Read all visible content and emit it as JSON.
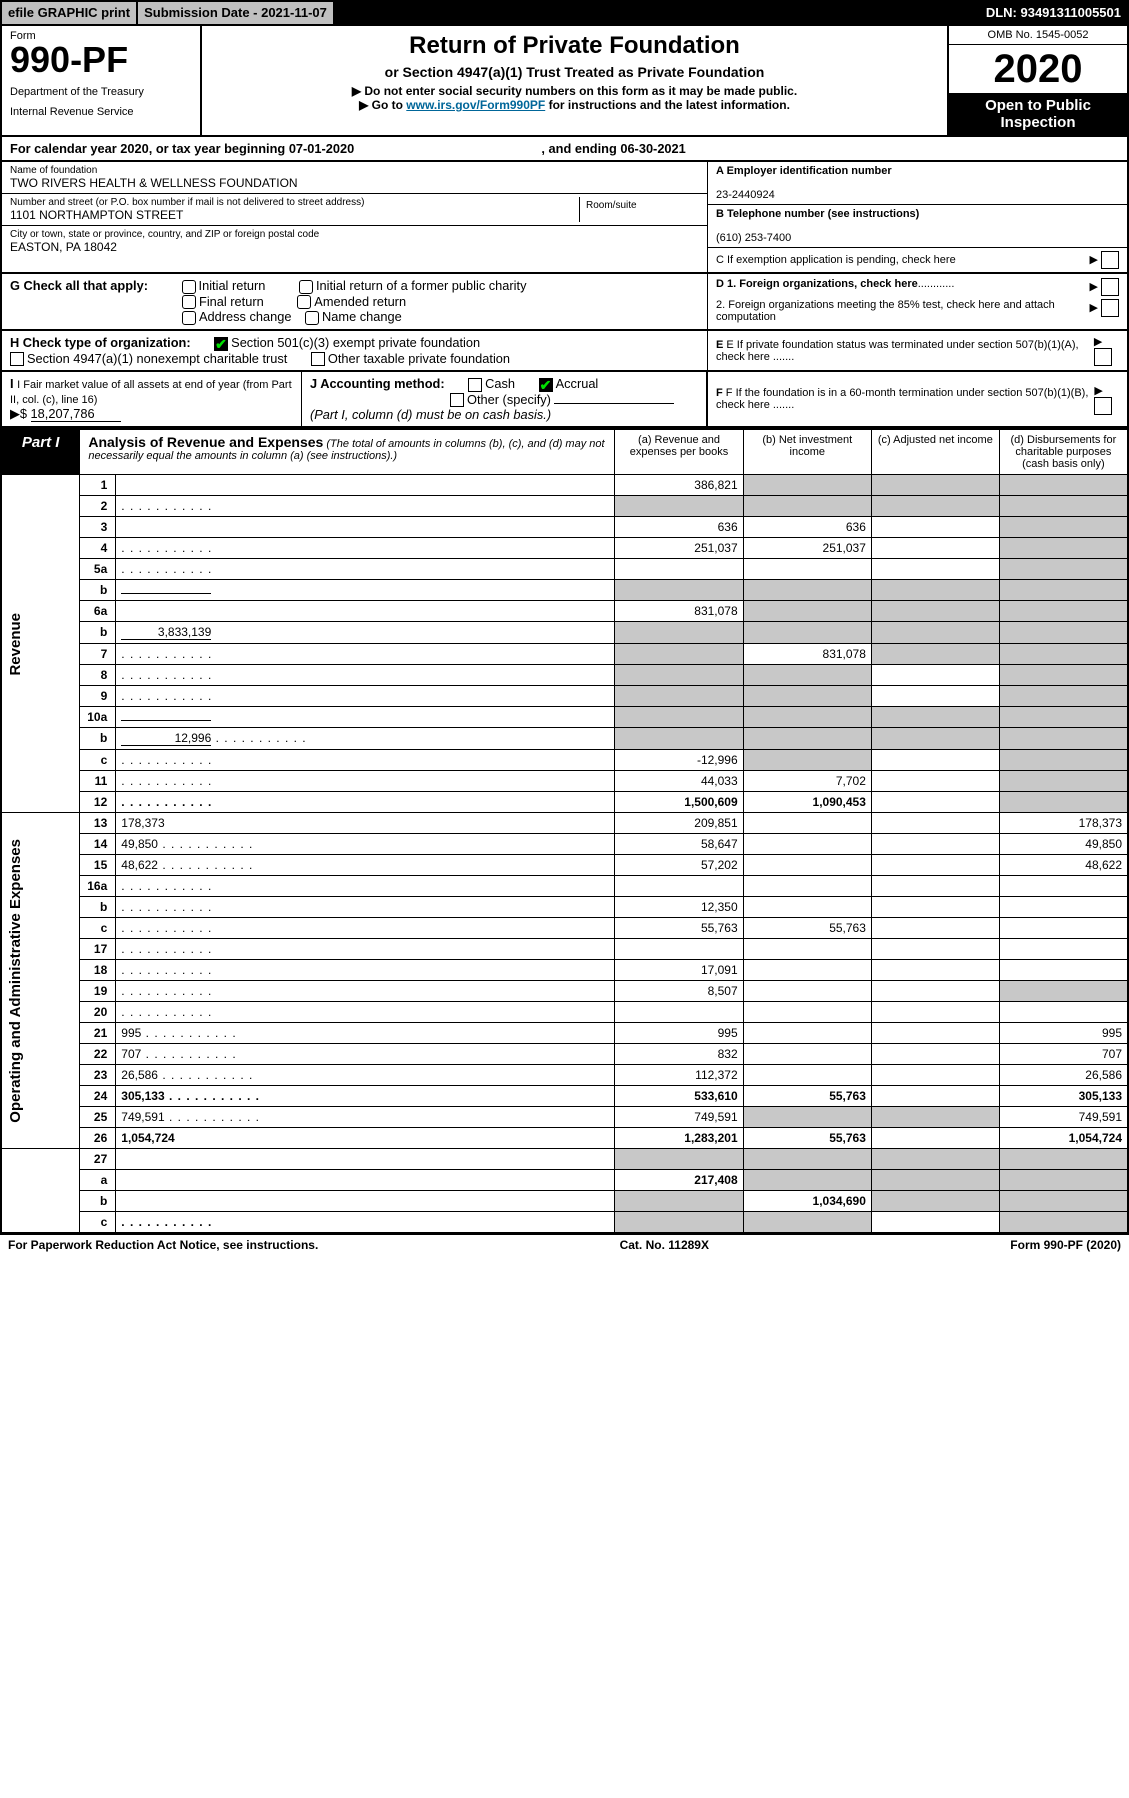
{
  "topbar": {
    "efile": "efile GRAPHIC print",
    "subdate": "Submission Date - 2021-11-07",
    "dln": "DLN: 93491311005501"
  },
  "header": {
    "form_label": "Form",
    "form_num": "990-PF",
    "dept1": "Department of the Treasury",
    "dept2": "Internal Revenue Service",
    "title": "Return of Private Foundation",
    "subtitle": "or Section 4947(a)(1) Trust Treated as Private Foundation",
    "instr1": "▶ Do not enter social security numbers on this form as it may be made public.",
    "instr2_pre": "▶ Go to ",
    "instr2_link": "www.irs.gov/Form990PF",
    "instr2_post": " for instructions and the latest information.",
    "omb": "OMB No. 1545-0052",
    "year": "2020",
    "open": "Open to Public Inspection"
  },
  "calrow": {
    "pre": "For calendar year 2020, or tax year beginning ",
    "begin": "07-01-2020",
    "mid": " , and ending ",
    "end": "06-30-2021"
  },
  "entity": {
    "name_label": "Name of foundation",
    "name": "TWO RIVERS HEALTH & WELLNESS FOUNDATION",
    "addr_label": "Number and street (or P.O. box number if mail is not delivered to street address)",
    "addr": "1101 NORTHAMPTON STREET",
    "room_label": "Room/suite",
    "city_label": "City or town, state or province, country, and ZIP or foreign postal code",
    "city": "EASTON, PA  18042",
    "a_label": "A Employer identification number",
    "a_val": "23-2440924",
    "b_label": "B Telephone number (see instructions)",
    "b_val": "(610) 253-7400",
    "c_label": "C If exemption application is pending, check here"
  },
  "g": {
    "label": "G Check all that apply:",
    "opts": [
      "Initial return",
      "Initial return of a former public charity",
      "Final return",
      "Amended return",
      "Address change",
      "Name change"
    ]
  },
  "d": {
    "d1": "D 1. Foreign organizations, check here",
    "d2": "2. Foreign organizations meeting the 85% test, check here and attach computation"
  },
  "h": {
    "label": "H Check type of organization:",
    "opt1": "Section 501(c)(3) exempt private foundation",
    "opt2": "Section 4947(a)(1) nonexempt charitable trust",
    "opt3": "Other taxable private foundation"
  },
  "e": {
    "label": "E  If private foundation status was terminated under section 507(b)(1)(A), check here"
  },
  "i": {
    "label": "I Fair market value of all assets at end of year (from Part II, col. (c), line 16)",
    "arrow": "▶$",
    "val": "18,207,786"
  },
  "j": {
    "label": "J Accounting method:",
    "cash": "Cash",
    "accrual": "Accrual",
    "other": "Other (specify)",
    "note": "(Part I, column (d) must be on cash basis.)"
  },
  "f": {
    "label": "F  If the foundation is in a 60-month termination under section 507(b)(1)(B), check here"
  },
  "part1": {
    "label": "Part I",
    "title": "Analysis of Revenue and Expenses",
    "note": "(The total of amounts in columns (b), (c), and (d) may not necessarily equal the amounts in column (a) (see instructions).)",
    "col_a": "(a) Revenue and expenses per books",
    "col_b": "(b) Net investment income",
    "col_c": "(c) Adjusted net income",
    "col_d": "(d) Disbursements for charitable purposes (cash basis only)"
  },
  "sections": {
    "revenue": "Revenue",
    "expenses": "Operating and Administrative Expenses"
  },
  "rows": [
    {
      "n": "1",
      "d": "",
      "a": "386,821",
      "b": "",
      "c": "",
      "grey": [
        "b",
        "c",
        "d"
      ]
    },
    {
      "n": "2",
      "d": "",
      "a": "",
      "b": "",
      "c": "",
      "grey": [
        "a",
        "b",
        "c",
        "d"
      ],
      "dots": true
    },
    {
      "n": "3",
      "d": "",
      "a": "636",
      "b": "636",
      "c": "",
      "grey": [
        "d"
      ]
    },
    {
      "n": "4",
      "d": "",
      "a": "251,037",
      "b": "251,037",
      "c": "",
      "grey": [
        "d"
      ],
      "dots": true
    },
    {
      "n": "5a",
      "d": "",
      "a": "",
      "b": "",
      "c": "",
      "grey": [
        "d"
      ],
      "dots": true
    },
    {
      "n": "b",
      "d": "",
      "a": "",
      "b": "",
      "c": "",
      "grey": [
        "a",
        "b",
        "c",
        "d"
      ],
      "inline": true
    },
    {
      "n": "6a",
      "d": "",
      "a": "831,078",
      "b": "",
      "c": "",
      "grey": [
        "b",
        "c",
        "d"
      ]
    },
    {
      "n": "b",
      "d": "",
      "a": "",
      "b": "",
      "c": "",
      "grey": [
        "a",
        "b",
        "c",
        "d"
      ],
      "inline": true,
      "inlineval": "3,833,139"
    },
    {
      "n": "7",
      "d": "",
      "a": "",
      "b": "831,078",
      "c": "",
      "grey": [
        "a",
        "c",
        "d"
      ],
      "dots": true
    },
    {
      "n": "8",
      "d": "",
      "a": "",
      "b": "",
      "c": "",
      "grey": [
        "a",
        "b",
        "d"
      ],
      "dots": true
    },
    {
      "n": "9",
      "d": "",
      "a": "",
      "b": "",
      "c": "",
      "grey": [
        "a",
        "b",
        "d"
      ],
      "dots": true
    },
    {
      "n": "10a",
      "d": "",
      "a": "",
      "b": "",
      "c": "",
      "grey": [
        "a",
        "b",
        "c",
        "d"
      ],
      "inline": true
    },
    {
      "n": "b",
      "d": "",
      "a": "",
      "b": "",
      "c": "",
      "grey": [
        "a",
        "b",
        "c",
        "d"
      ],
      "inline": true,
      "inlineval": "12,996",
      "dots": true
    },
    {
      "n": "c",
      "d": "",
      "a": "-12,996",
      "b": "",
      "c": "",
      "grey": [
        "b",
        "d"
      ],
      "dots": true
    },
    {
      "n": "11",
      "d": "",
      "a": "44,033",
      "b": "7,702",
      "c": "",
      "grey": [
        "d"
      ],
      "dots": true
    },
    {
      "n": "12",
      "d": "",
      "a": "1,500,609",
      "b": "1,090,453",
      "c": "",
      "grey": [
        "d"
      ],
      "bold": true,
      "dots": true
    }
  ],
  "exprows": [
    {
      "n": "13",
      "d": "178,373",
      "a": "209,851",
      "b": "",
      "c": ""
    },
    {
      "n": "14",
      "d": "49,850",
      "a": "58,647",
      "b": "",
      "c": "",
      "dots": true
    },
    {
      "n": "15",
      "d": "48,622",
      "a": "57,202",
      "b": "",
      "c": "",
      "dots": true
    },
    {
      "n": "16a",
      "d": "",
      "a": "",
      "b": "",
      "c": "",
      "dots": true
    },
    {
      "n": "b",
      "d": "",
      "a": "12,350",
      "b": "",
      "c": "",
      "dots": true
    },
    {
      "n": "c",
      "d": "",
      "a": "55,763",
      "b": "55,763",
      "c": "",
      "dots": true
    },
    {
      "n": "17",
      "d": "",
      "a": "",
      "b": "",
      "c": "",
      "dots": true
    },
    {
      "n": "18",
      "d": "",
      "a": "17,091",
      "b": "",
      "c": "",
      "dots": true
    },
    {
      "n": "19",
      "d": "",
      "a": "8,507",
      "b": "",
      "c": "",
      "grey": [
        "d"
      ],
      "dots": true
    },
    {
      "n": "20",
      "d": "",
      "a": "",
      "b": "",
      "c": "",
      "dots": true
    },
    {
      "n": "21",
      "d": "995",
      "a": "995",
      "b": "",
      "c": "",
      "dots": true
    },
    {
      "n": "22",
      "d": "707",
      "a": "832",
      "b": "",
      "c": "",
      "dots": true
    },
    {
      "n": "23",
      "d": "26,586",
      "a": "112,372",
      "b": "",
      "c": "",
      "dots": true
    },
    {
      "n": "24",
      "d": "305,133",
      "a": "533,610",
      "b": "55,763",
      "c": "",
      "bold": true,
      "dots": true
    },
    {
      "n": "25",
      "d": "749,591",
      "a": "749,591",
      "b": "",
      "c": "",
      "grey": [
        "b",
        "c"
      ],
      "dots": true
    },
    {
      "n": "26",
      "d": "1,054,724",
      "a": "1,283,201",
      "b": "55,763",
      "c": "",
      "bold": true
    }
  ],
  "finalrows": [
    {
      "n": "27",
      "d": "",
      "a": "",
      "b": "",
      "c": "",
      "grey": [
        "a",
        "b",
        "c",
        "d"
      ]
    },
    {
      "n": "a",
      "d": "",
      "a": "217,408",
      "b": "",
      "c": "",
      "grey": [
        "b",
        "c",
        "d"
      ],
      "bold": true
    },
    {
      "n": "b",
      "d": "",
      "a": "",
      "b": "1,034,690",
      "c": "",
      "grey": [
        "a",
        "c",
        "d"
      ],
      "bold": true
    },
    {
      "n": "c",
      "d": "",
      "a": "",
      "b": "",
      "c": "",
      "grey": [
        "a",
        "b",
        "d"
      ],
      "bold": true,
      "dots": true
    }
  ],
  "footer": {
    "left": "For Paperwork Reduction Act Notice, see instructions.",
    "mid": "Cat. No. 11289X",
    "right": "Form 990-PF (2020)"
  }
}
